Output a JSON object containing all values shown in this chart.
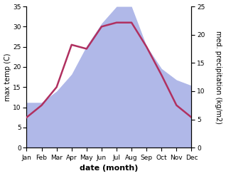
{
  "months": [
    "Jan",
    "Feb",
    "Mar",
    "Apr",
    "May",
    "Jun",
    "Jul",
    "Aug",
    "Sep",
    "Oct",
    "Nov",
    "Dec"
  ],
  "temperature": [
    7.5,
    10.5,
    15.0,
    25.5,
    24.5,
    30.0,
    31.0,
    31.0,
    25.0,
    18.0,
    10.5,
    7.5
  ],
  "precipitation": [
    8.0,
    8.0,
    10.0,
    13.0,
    18.0,
    22.0,
    25.0,
    25.0,
    18.0,
    14.0,
    12.0,
    11.0
  ],
  "temp_color": "#b03060",
  "precip_color": "#b0b8e8",
  "temp_ylim": [
    0,
    35
  ],
  "precip_ylim": [
    0,
    25
  ],
  "temp_yticks": [
    0,
    5,
    10,
    15,
    20,
    25,
    30,
    35
  ],
  "precip_yticks": [
    0,
    5,
    10,
    15,
    20,
    25
  ],
  "xlabel": "date (month)",
  "ylabel_left": "max temp (C)",
  "ylabel_right": "med. precipitation (kg/m2)",
  "bg_color": "#ffffff",
  "label_fontsize": 7,
  "tick_fontsize": 6.5
}
